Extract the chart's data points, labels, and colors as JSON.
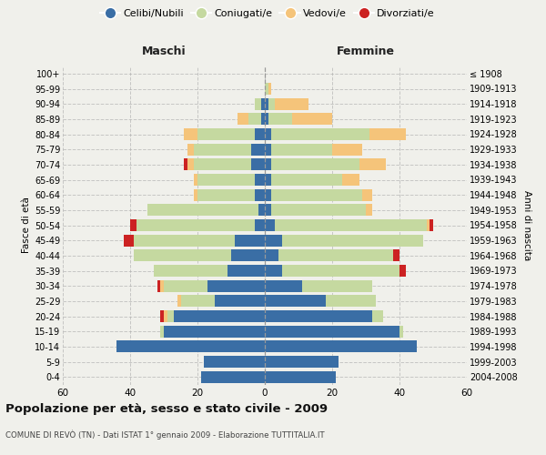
{
  "age_groups": [
    "0-4",
    "5-9",
    "10-14",
    "15-19",
    "20-24",
    "25-29",
    "30-34",
    "35-39",
    "40-44",
    "45-49",
    "50-54",
    "55-59",
    "60-64",
    "65-69",
    "70-74",
    "75-79",
    "80-84",
    "85-89",
    "90-94",
    "95-99",
    "100+"
  ],
  "birth_years": [
    "2004-2008",
    "1999-2003",
    "1994-1998",
    "1989-1993",
    "1984-1988",
    "1979-1983",
    "1974-1978",
    "1969-1973",
    "1964-1968",
    "1959-1963",
    "1954-1958",
    "1949-1953",
    "1944-1948",
    "1939-1943",
    "1934-1938",
    "1929-1933",
    "1924-1928",
    "1919-1923",
    "1914-1918",
    "1909-1913",
    "≤ 1908"
  ],
  "males": {
    "celibe": [
      19,
      18,
      44,
      30,
      27,
      15,
      17,
      11,
      10,
      9,
      3,
      2,
      3,
      3,
      4,
      4,
      3,
      1,
      1,
      0,
      0
    ],
    "coniugato": [
      0,
      0,
      0,
      1,
      2,
      10,
      13,
      22,
      29,
      30,
      35,
      33,
      17,
      17,
      17,
      17,
      17,
      4,
      2,
      0,
      0
    ],
    "vedovo": [
      0,
      0,
      0,
      0,
      1,
      1,
      1,
      0,
      0,
      0,
      0,
      0,
      1,
      1,
      2,
      2,
      4,
      3,
      0,
      0,
      0
    ],
    "divorziato": [
      0,
      0,
      0,
      0,
      1,
      0,
      1,
      0,
      0,
      3,
      2,
      0,
      0,
      0,
      1,
      0,
      0,
      0,
      0,
      0,
      0
    ]
  },
  "females": {
    "nubile": [
      21,
      22,
      45,
      40,
      32,
      18,
      11,
      5,
      4,
      5,
      3,
      2,
      2,
      2,
      2,
      2,
      2,
      1,
      1,
      0,
      0
    ],
    "coniugata": [
      0,
      0,
      0,
      1,
      3,
      15,
      21,
      35,
      34,
      42,
      45,
      28,
      27,
      21,
      26,
      18,
      29,
      7,
      2,
      1,
      0
    ],
    "vedova": [
      0,
      0,
      0,
      0,
      0,
      0,
      0,
      0,
      0,
      0,
      1,
      2,
      3,
      5,
      8,
      9,
      11,
      12,
      10,
      1,
      0
    ],
    "divorziata": [
      0,
      0,
      0,
      0,
      0,
      0,
      0,
      2,
      2,
      0,
      1,
      0,
      0,
      0,
      0,
      0,
      0,
      0,
      0,
      0,
      0
    ]
  },
  "colors": {
    "celibe": "#3a6ea5",
    "coniugato": "#c5d9a0",
    "vedovo": "#f5c47a",
    "divorziato": "#cc2222"
  },
  "xlim": 60,
  "title": "Popolazione per età, sesso e stato civile - 2009",
  "subtitle": "COMUNE DI REVÒ (TN) - Dati ISTAT 1° gennaio 2009 - Elaborazione TUTTITALIA.IT",
  "ylabel_left": "Fasce di età",
  "ylabel_right": "Anni di nascita",
  "xlabel_left": "Maschi",
  "xlabel_right": "Femmine",
  "background_color": "#f0f0eb"
}
